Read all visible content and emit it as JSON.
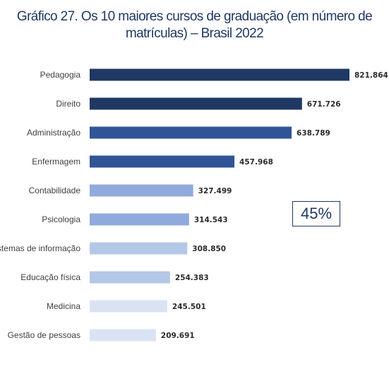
{
  "title_line1": "Gráfico 27. Os 10 maiores cursos de graduação (em número de",
  "title_line2": "matrículas) – Brasil 2022",
  "callout": "45%",
  "chart_data": {
    "type": "bar",
    "orientation": "horizontal",
    "title": "Gráfico 27. Os 10 maiores cursos de graduação (em número de matrículas) – Brasil 2022",
    "xlabel": "",
    "ylabel": "",
    "grid": false,
    "legend": "none",
    "xlim": [
      0,
      821864
    ],
    "categories": [
      "Pedagogia",
      "Direito",
      "Administração",
      "Enfermagem",
      "Contabilidade",
      "Psicologia",
      "Sistemas de informação",
      "Educação física",
      "Medicina",
      "Gestão de pessoas"
    ],
    "values": [
      821864,
      671726,
      638789,
      457968,
      327499,
      314543,
      308850,
      254383,
      245501,
      209691
    ],
    "value_labels": [
      "821.864",
      "671.726",
      "638.789",
      "457.968",
      "327.499",
      "314.543",
      "308.850",
      "254.383",
      "245.501",
      "209.691"
    ],
    "colors": [
      "#203864",
      "#203864",
      "#2f5597",
      "#2f5597",
      "#8faadc",
      "#8faadc",
      "#b4c7e7",
      "#b4c7e7",
      "#dae3f3",
      "#dae3f3"
    ]
  }
}
